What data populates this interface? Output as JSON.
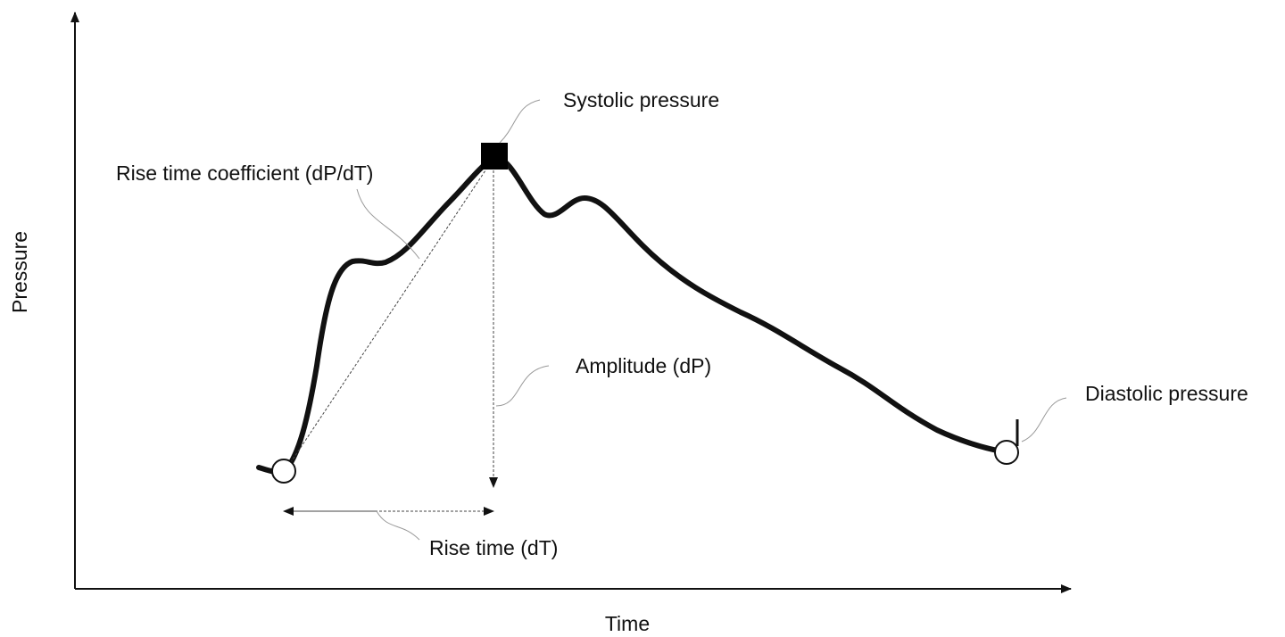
{
  "axes": {
    "x_label": "Time",
    "y_label": "Pressure"
  },
  "annotations": {
    "systolic": "Systolic pressure",
    "rise_coefficient": "Rise time coefficient (dP/dT)",
    "amplitude": "Amplitude (dP)",
    "diastolic": "Diastolic pressure",
    "rise_time": "Rise time (dT)"
  }
}
